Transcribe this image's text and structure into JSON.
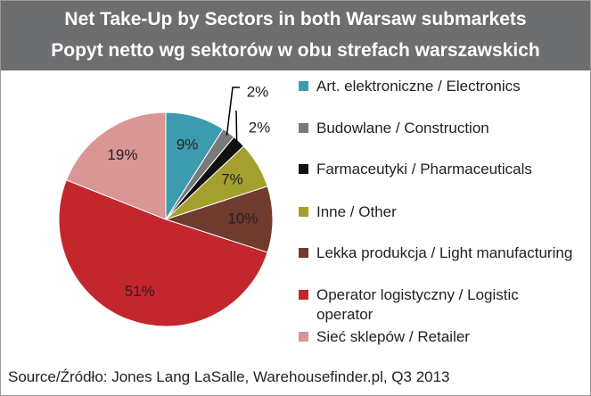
{
  "chart_data": {
    "type": "pie",
    "title": "Net Take-Up by Sectors in both Warsaw submarkets",
    "subtitle": "Popyt netto wg sektorów w obu strefach warszawskich",
    "categories": [
      "Art. elektroniczne / Electronics",
      "Budowlane / Construction",
      "Farmaceutyki / Pharmaceuticals",
      "Inne / Other",
      "Lekka produkcja / Light manufacturing",
      "Operator logistyczny / Logistic operator",
      "Sieć sklepów / Retailer"
    ],
    "values": [
      9,
      2,
      2,
      7,
      10,
      51,
      19
    ],
    "value_labels": [
      "9%",
      "2%",
      "2%",
      "7%",
      "10%",
      "51%",
      "19%"
    ],
    "colors": [
      "#3d9bb0",
      "#7a7a7a",
      "#111111",
      "#a3a02e",
      "#6e3b2e",
      "#c3262d",
      "#d99694"
    ],
    "source": "Source/Źródło: Jones Lang LaSalle, Warehousefinder.pl, Q3 2013"
  }
}
